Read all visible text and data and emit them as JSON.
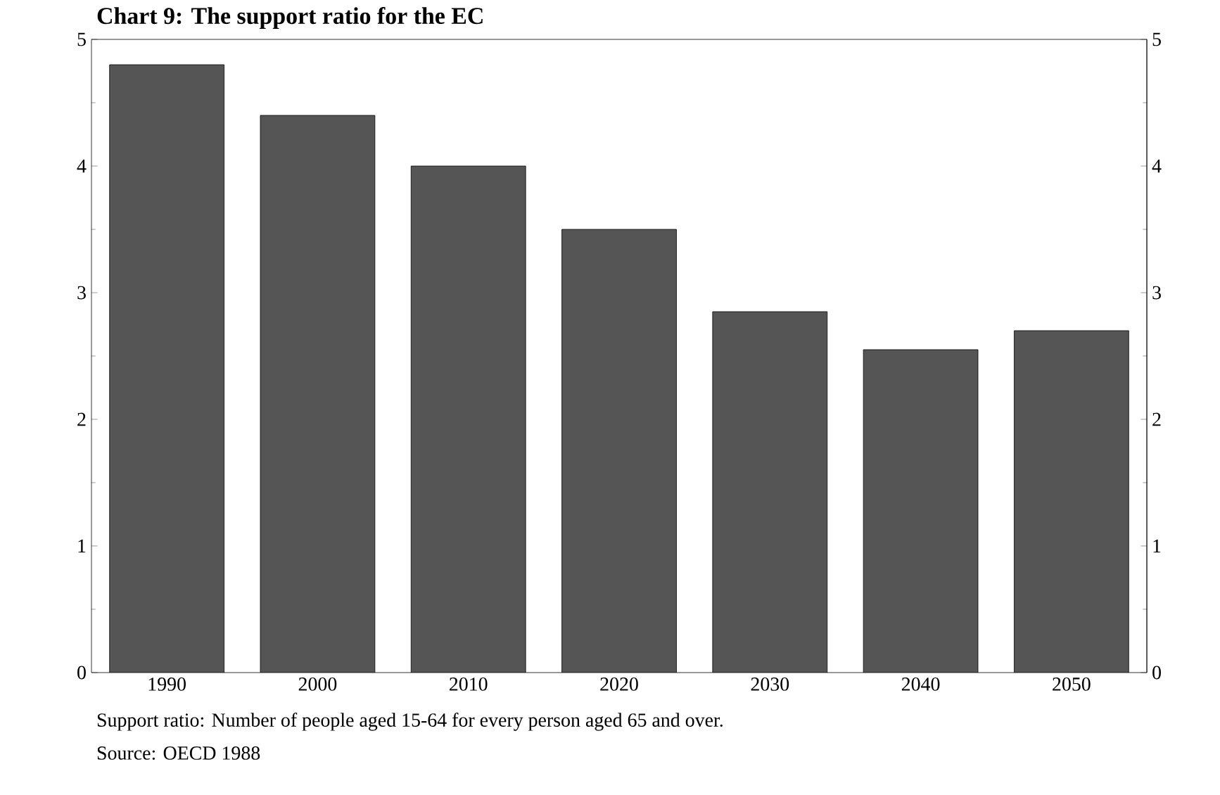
{
  "chart_data": {
    "type": "bar",
    "title": "Chart 9: The support ratio for the EC",
    "categories": [
      "1990",
      "2000",
      "2010",
      "2020",
      "2030",
      "2040",
      "2050"
    ],
    "values": [
      4.8,
      4.4,
      4.0,
      3.5,
      2.85,
      2.55,
      2.7
    ],
    "color": "#555555",
    "ylim": [
      0,
      5
    ],
    "yticks": [
      0,
      1,
      2,
      3,
      4,
      5
    ],
    "y2lim": [
      0,
      5
    ],
    "y2ticks": [
      0,
      1,
      2,
      3,
      4,
      5
    ],
    "grid": false,
    "annotations": [
      "Support ratio: Number of people aged 15-64 for every person aged 65 and over.",
      "Source: OECD 1988"
    ]
  }
}
